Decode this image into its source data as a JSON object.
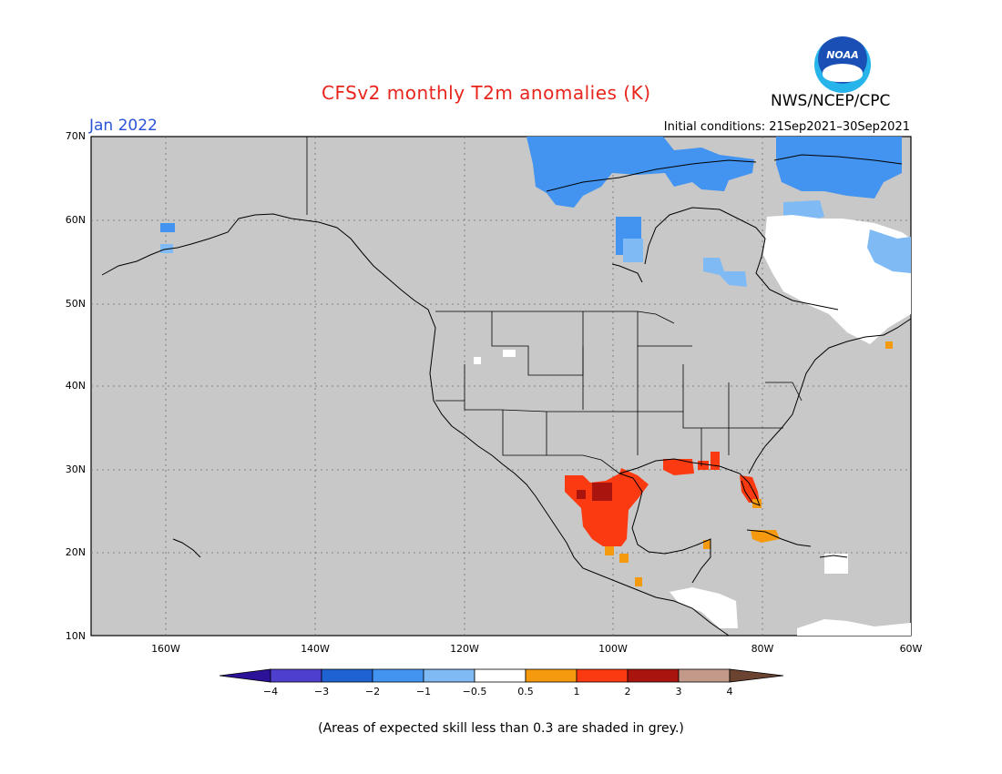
{
  "title": "CFSv2 monthly T2m anomalies (K)",
  "agency": "NWS/NCEP/CPC",
  "logo_text": "NOAA",
  "month": "Jan 2022",
  "initial_conditions": "Initial conditions: 21Sep2021–30Sep2021",
  "lat_labels": [
    "70N",
    "60N",
    "50N",
    "40N",
    "30N",
    "20N",
    "10N"
  ],
  "lon_labels": [
    "160W",
    "140W",
    "120W",
    "100W",
    "80W",
    "60W"
  ],
  "colorbar": {
    "ticks": [
      "−4",
      "−3",
      "−2",
      "−1",
      "−0.5",
      "0.5",
      "1",
      "2",
      "3",
      "4"
    ],
    "colors": [
      "#2b1299",
      "#4f3fcf",
      "#1f63d3",
      "#4294f0",
      "#7fbaf4",
      "#ffffff",
      "#f59a0f",
      "#fb3a12",
      "#a9140e",
      "#c39a89",
      "#6b4331"
    ]
  },
  "note": "(Areas of expected skill less than 0.3 are shaded in grey.)",
  "colors": {
    "land_grey": "#c8c8c8",
    "title_red": "#e8241c",
    "month_blue": "#2a53d6"
  },
  "map": {
    "extent": {
      "lon_min": -170,
      "lon_max": -60,
      "lat_min": 10,
      "lat_max": 70
    },
    "anomaly_regions": [
      {
        "category": "-1",
        "color": "#4294f0",
        "area": "Northern Canadian Arctic"
      },
      {
        "category": "-1",
        "color": "#4294f0",
        "area": "Hudson Bay"
      },
      {
        "category": "-0.5",
        "color": "#7fbaf4",
        "area": "Northern Quebec and Labrador"
      },
      {
        "category": "-0.5",
        "color": "#7fbaf4",
        "area": "Southwest Alaska"
      },
      {
        "category": "0",
        "color": "#ffffff",
        "area": "Quebec and Labrador"
      },
      {
        "category": "0",
        "color": "#ffffff",
        "area": "Central America"
      },
      {
        "category": "1",
        "color": "#fb3a12",
        "area": "Northern Mexico and Texas"
      },
      {
        "category": "1",
        "color": "#fb3a12",
        "area": "Gulf Coast and Florida"
      },
      {
        "category": "2",
        "color": "#a9140e",
        "area": "Northeast Mexico"
      },
      {
        "category": "0.5",
        "color": "#f59a0f",
        "area": "Cuba and southern Florida"
      }
    ]
  }
}
